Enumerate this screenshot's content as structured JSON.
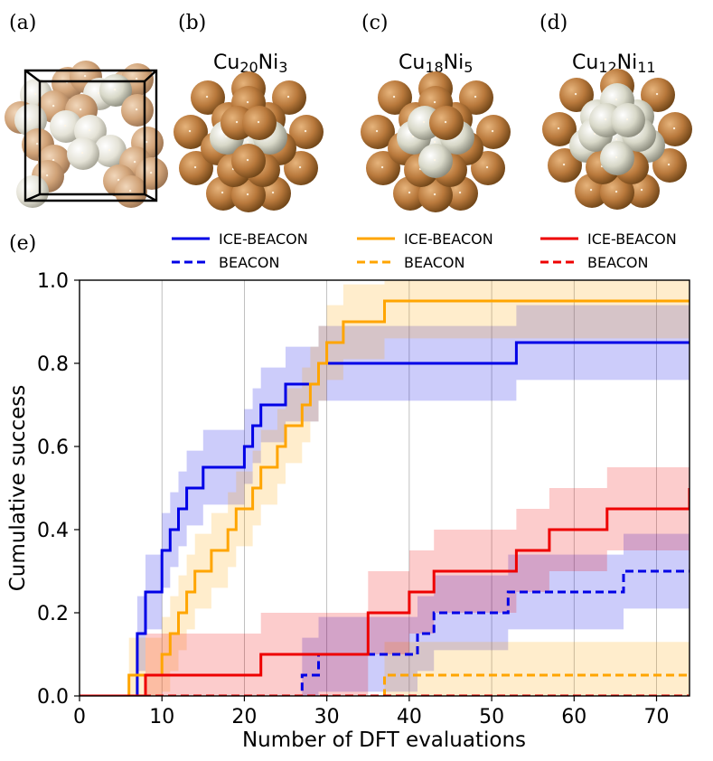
{
  "panel_labels": [
    "(a)",
    "(b)",
    "(c)",
    "(d)",
    "(e)"
  ],
  "structures": [
    {
      "element1": "Cu",
      "count1": "20",
      "element2": "Ni",
      "count2": "3"
    },
    {
      "element1": "Cu",
      "count1": "18",
      "element2": "Ni",
      "count2": "5"
    },
    {
      "element1": "Cu",
      "count1": "12",
      "element2": "Ni",
      "count2": "11"
    }
  ],
  "colors": {
    "cu": "#b0773a",
    "ni": "#d6d6c6",
    "blue": "#0000e6",
    "orange": "#ffa500",
    "red": "#ee0000",
    "grid": "#b0b0b0"
  },
  "chart_data": {
    "type": "line",
    "xlabel": "Number of DFT evaluations",
    "ylabel": "Cumulative success",
    "xlim": [
      0,
      74
    ],
    "ylim": [
      0,
      1.0
    ],
    "xticks": [
      "0",
      "10",
      "20",
      "30",
      "40",
      "50",
      "60",
      "70"
    ],
    "yticks": [
      "0.0",
      "0.2",
      "0.4",
      "0.6",
      "0.8",
      "1.0"
    ],
    "grid": "vertical",
    "legend": {
      "placement": "top",
      "entries": [
        {
          "label": "ICE-BEACON",
          "color": "blue",
          "style": "solid"
        },
        {
          "label": "BEACON",
          "color": "blue",
          "style": "dashed"
        },
        {
          "label": "ICE-BEACON",
          "color": "orange",
          "style": "solid"
        },
        {
          "label": "BEACON",
          "color": "orange",
          "style": "dashed"
        },
        {
          "label": "ICE-BEACON",
          "color": "red",
          "style": "solid"
        },
        {
          "label": "BEACON",
          "color": "red",
          "style": "dashed"
        }
      ]
    },
    "series": [
      {
        "name": "ICE-BEACON (Cu20Ni3)",
        "color": "blue",
        "style": "solid",
        "x": [
          0,
          7,
          8,
          10,
          11,
          12,
          13,
          15,
          17,
          20,
          21,
          22,
          25,
          29,
          53,
          74
        ],
        "y": [
          0,
          0.15,
          0.25,
          0.35,
          0.4,
          0.45,
          0.5,
          0.55,
          0.55,
          0.6,
          0.65,
          0.7,
          0.75,
          0.8,
          0.85,
          0.85
        ],
        "band_width": 0.09
      },
      {
        "name": "BEACON (Cu20Ni3)",
        "color": "blue",
        "style": "dashed",
        "x": [
          0,
          27,
          29,
          40,
          41,
          43,
          52,
          66,
          74
        ],
        "y": [
          0,
          0.05,
          0.1,
          0.1,
          0.15,
          0.2,
          0.25,
          0.3,
          0.3
        ],
        "band_width": 0.09
      },
      {
        "name": "ICE-BEACON (Cu18Ni5)",
        "color": "orange",
        "style": "solid",
        "x": [
          0,
          6,
          10,
          11,
          12,
          13,
          14,
          16,
          18,
          19,
          21,
          22,
          24,
          25,
          27,
          28,
          29,
          30,
          32,
          37,
          74
        ],
        "y": [
          0,
          0.05,
          0.1,
          0.15,
          0.2,
          0.25,
          0.3,
          0.35,
          0.4,
          0.45,
          0.5,
          0.55,
          0.6,
          0.65,
          0.7,
          0.75,
          0.8,
          0.85,
          0.9,
          0.95,
          0.95
        ],
        "band_width": 0.09
      },
      {
        "name": "BEACON (Cu18Ni5)",
        "color": "orange",
        "style": "dashed",
        "x": [
          0,
          37,
          74
        ],
        "y": [
          0,
          0.05,
          0.05
        ],
        "band_width": 0.08
      },
      {
        "name": "ICE-BEACON (Cu12Ni11)",
        "color": "red",
        "style": "solid",
        "x": [
          0,
          8,
          22,
          35,
          40,
          43,
          52,
          53,
          57,
          64,
          74
        ],
        "y": [
          0,
          0.05,
          0.1,
          0.2,
          0.25,
          0.3,
          0.3,
          0.35,
          0.4,
          0.45,
          0.5
        ],
        "band_width": 0.1
      },
      {
        "name": "BEACON (Cu12Ni11)",
        "color": "red",
        "style": "dashed",
        "x": [
          0,
          74
        ],
        "y": [
          0,
          0
        ],
        "band_width": 0
      }
    ]
  }
}
